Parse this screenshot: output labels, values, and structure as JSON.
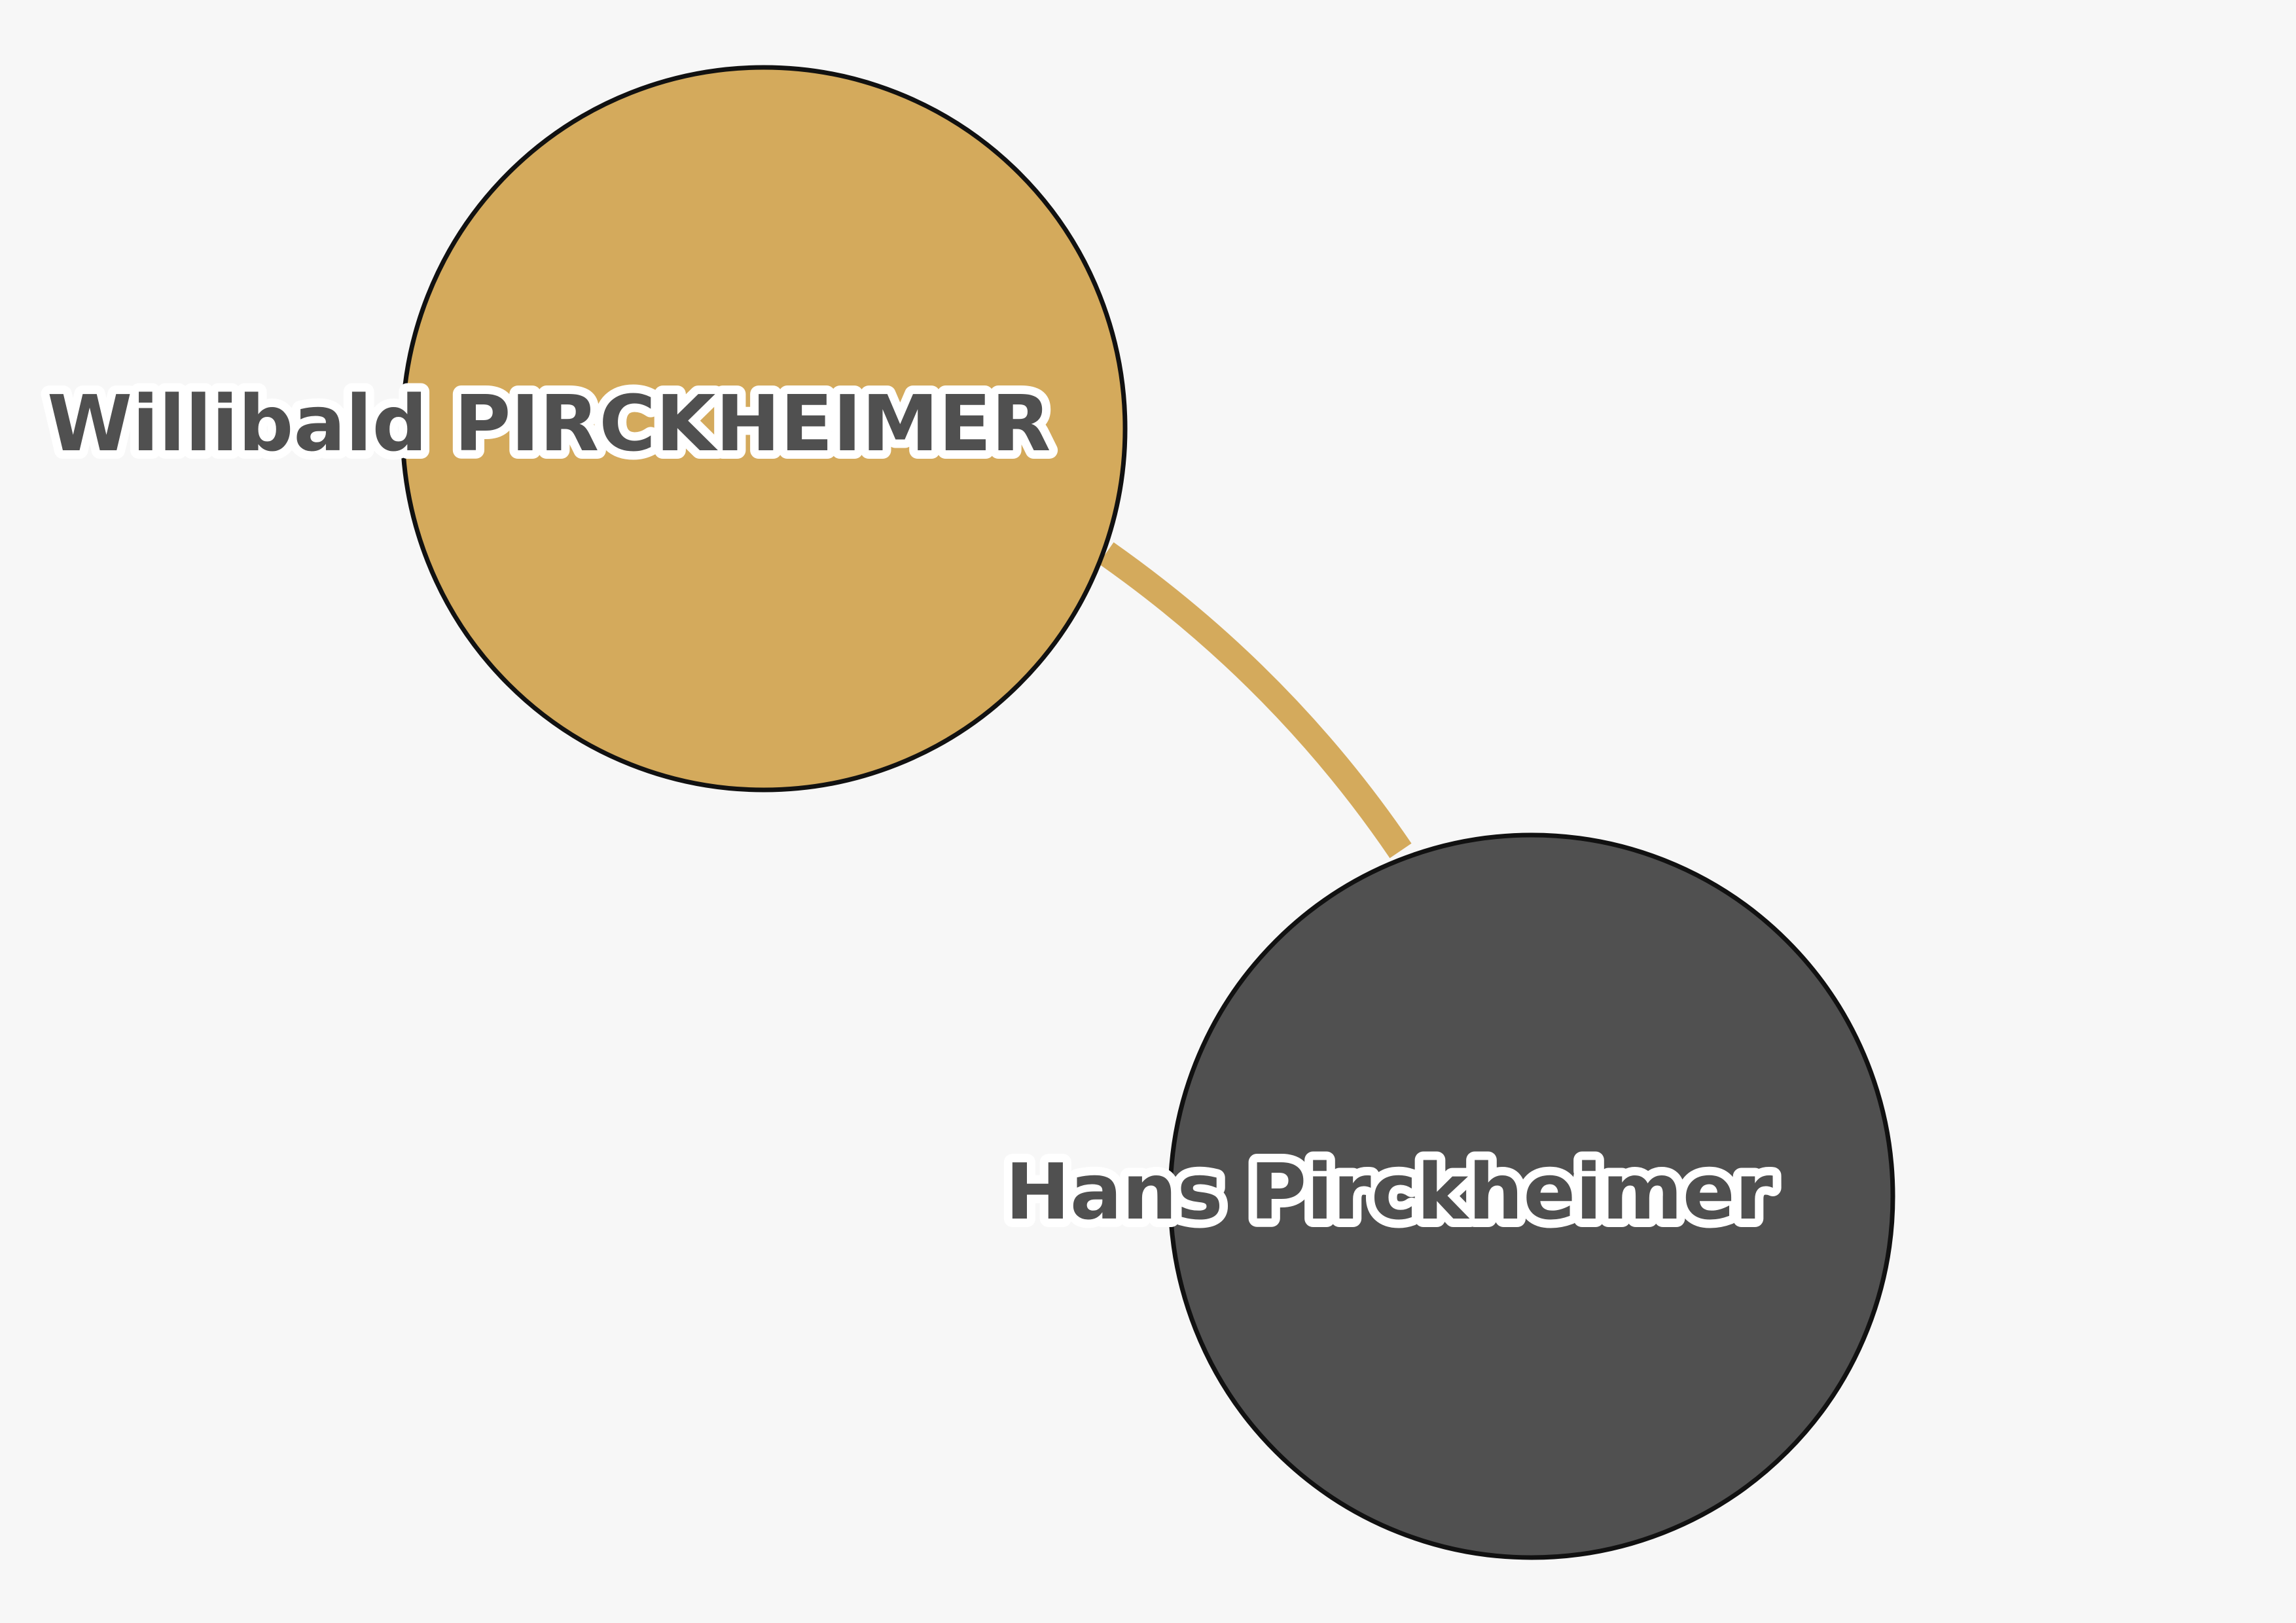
{
  "diagram": {
    "background_color": "#f7f7f7",
    "nodes": [
      {
        "id": "willibald",
        "label": "Willibald PIRCKHEIMER",
        "fill": "#d4aa5c"
      },
      {
        "id": "hans",
        "label": "Hans Pirckheimer",
        "fill": "#505050"
      }
    ],
    "edges": [
      {
        "from": "willibald",
        "to": "hans",
        "color": "#d4aa5c"
      }
    ]
  }
}
